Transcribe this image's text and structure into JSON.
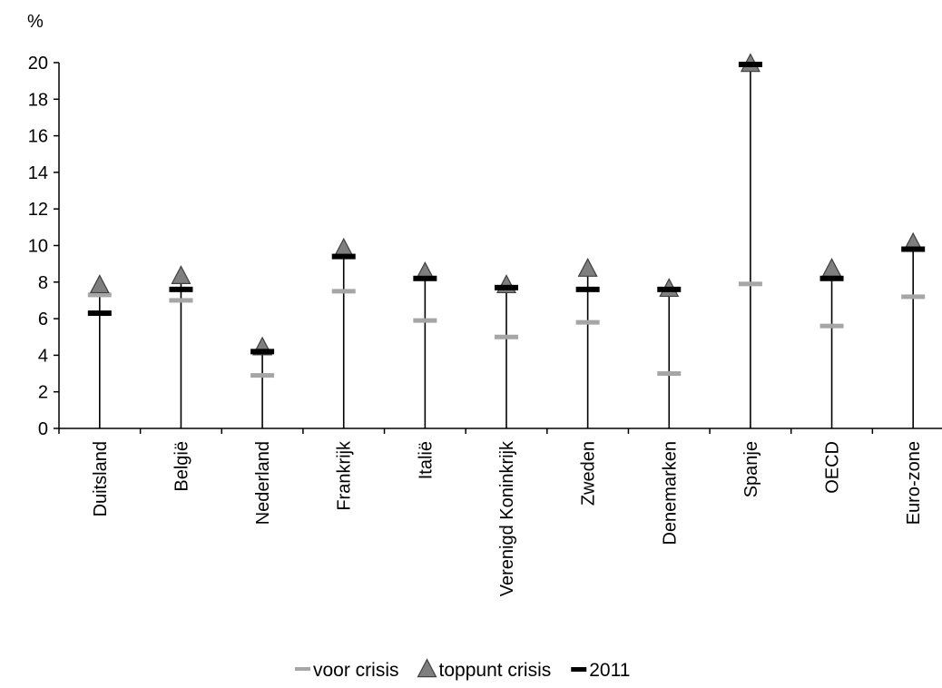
{
  "chart_data": {
    "type": "scatter",
    "y_unit_label": "%",
    "ylim": [
      0,
      20
    ],
    "yticks": [
      0,
      2,
      4,
      6,
      8,
      10,
      12,
      14,
      16,
      18,
      20
    ],
    "grid": false,
    "legend_position": "bottom",
    "categories": [
      "Duitsland",
      "België",
      "Nederland",
      "Frankrijk",
      "Italië",
      "Verenigd Koninkrijk",
      "Zweden",
      "Denemarken",
      "Spanje",
      "OECD",
      "Euro-zone"
    ],
    "series": [
      {
        "name": "voor crisis",
        "marker": "dash",
        "color": "#a6a6a6",
        "values": [
          7.3,
          7.0,
          2.9,
          7.5,
          5.9,
          5.0,
          5.8,
          3.0,
          7.9,
          5.6,
          7.2
        ]
      },
      {
        "name": "toppunt crisis",
        "marker": "triangle",
        "color": "#7f7f7f",
        "values": [
          7.8,
          8.3,
          4.4,
          9.8,
          8.5,
          7.8,
          8.7,
          7.6,
          19.9,
          8.7,
          10.1
        ]
      },
      {
        "name": "2011",
        "marker": "dash",
        "color": "#000000",
        "values": [
          6.3,
          7.6,
          4.2,
          9.4,
          8.2,
          7.7,
          7.6,
          7.6,
          19.9,
          8.2,
          9.8
        ]
      }
    ]
  }
}
